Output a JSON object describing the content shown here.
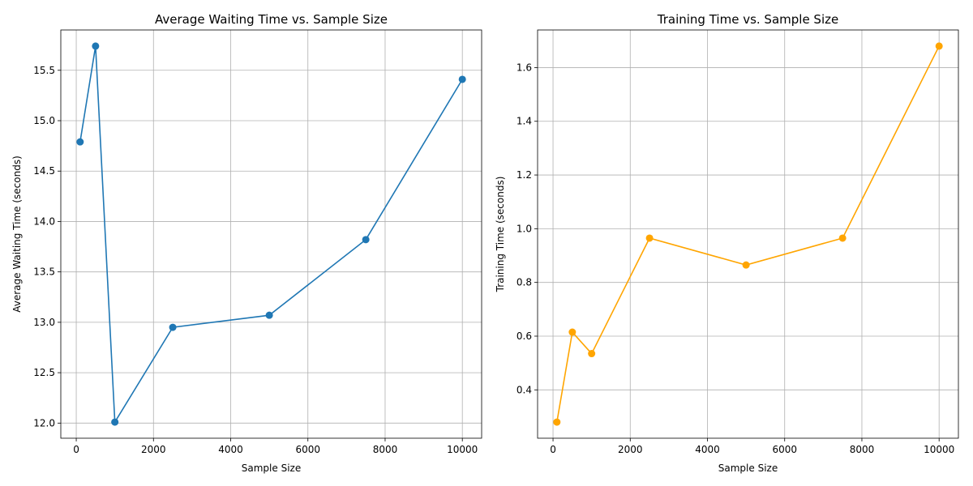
{
  "chart_data": [
    {
      "type": "line",
      "title": "Average Waiting Time vs. Sample Size",
      "xlabel": "Sample Size",
      "ylabel": "Average Waiting Time (seconds)",
      "xlim": [
        -400,
        10500
      ],
      "ylim": [
        11.85,
        15.9
      ],
      "xticks": [
        0,
        2000,
        4000,
        6000,
        8000,
        10000
      ],
      "yticks": [
        12.0,
        12.5,
        13.0,
        13.5,
        14.0,
        14.5,
        15.0,
        15.5
      ],
      "ytick_labels": [
        "12.0",
        "12.5",
        "13.0",
        "13.5",
        "14.0",
        "14.5",
        "15.0",
        "15.5"
      ],
      "grid": true,
      "series": [
        {
          "color": "#1f77b4",
          "marker": "circle",
          "x": [
            100,
            500,
            1000,
            2500,
            5000,
            7500,
            10000
          ],
          "y": [
            14.79,
            15.74,
            12.01,
            12.95,
            13.07,
            13.82,
            15.41
          ]
        }
      ]
    },
    {
      "type": "line",
      "title": "Training Time vs. Sample Size",
      "xlabel": "Sample Size",
      "ylabel": "Training Time (seconds)",
      "xlim": [
        -400,
        10500
      ],
      "ylim": [
        0.22,
        1.74
      ],
      "xticks": [
        0,
        2000,
        4000,
        6000,
        8000,
        10000
      ],
      "yticks": [
        0.4,
        0.6,
        0.8,
        1.0,
        1.2,
        1.4,
        1.6
      ],
      "ytick_labels": [
        "0.4",
        "0.6",
        "0.8",
        "1.0",
        "1.2",
        "1.4",
        "1.6"
      ],
      "grid": true,
      "series": [
        {
          "color": "#ffa500",
          "marker": "circle",
          "x": [
            100,
            500,
            1000,
            2500,
            5000,
            7500,
            10000
          ],
          "y": [
            0.28,
            0.615,
            0.535,
            0.965,
            0.865,
            0.965,
            1.68
          ]
        }
      ]
    }
  ]
}
